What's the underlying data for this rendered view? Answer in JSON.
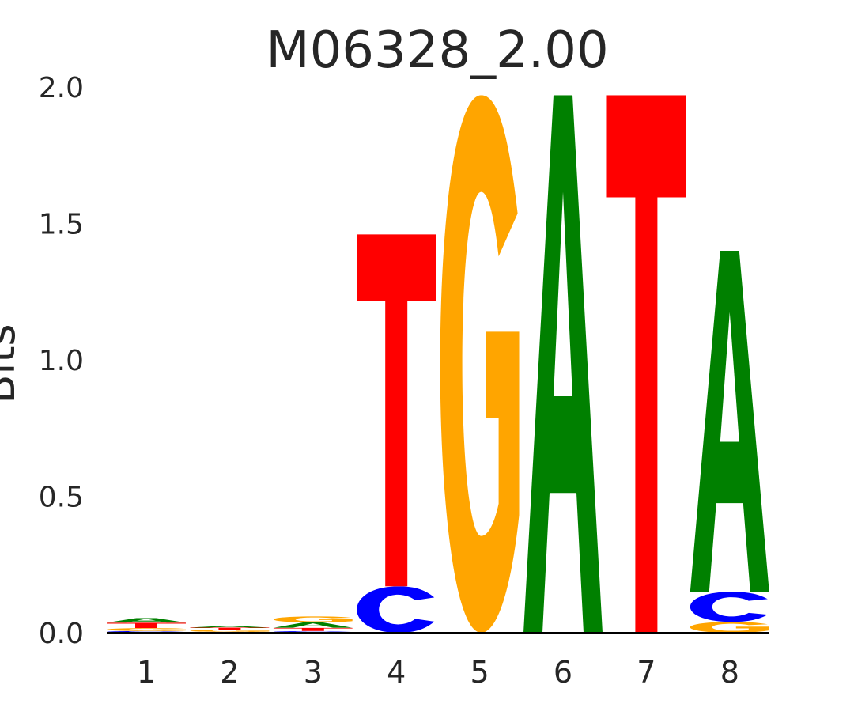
{
  "chart_data": {
    "type": "sequence-logo",
    "title": "M06328_2.00",
    "xlabel": "",
    "ylabel": "Bits",
    "ylim": [
      0,
      2.0
    ],
    "yticks": [
      "0.0",
      "0.5",
      "1.0",
      "1.5",
      "2.0"
    ],
    "ytick_values": [
      0,
      0.5,
      1.0,
      1.5,
      2.0
    ],
    "categories": [
      "1",
      "2",
      "3",
      "4",
      "5",
      "6",
      "7",
      "8"
    ],
    "colors": {
      "A": "#008000",
      "C": "#0000ff",
      "G": "#ffa500",
      "T": "#ff0000"
    },
    "positions": [
      [
        {
          "base": "C",
          "bits": 0.006
        },
        {
          "base": "G",
          "bits": 0.011
        },
        {
          "base": "T",
          "bits": 0.02
        },
        {
          "base": "A",
          "bits": 0.017
        }
      ],
      [
        {
          "base": "C",
          "bits": 0.003
        },
        {
          "base": "G",
          "bits": 0.008
        },
        {
          "base": "T",
          "bits": 0.008
        },
        {
          "base": "A",
          "bits": 0.006
        }
      ],
      [
        {
          "base": "C",
          "bits": 0.006
        },
        {
          "base": "T",
          "bits": 0.012
        },
        {
          "base": "A",
          "bits": 0.02
        },
        {
          "base": "G",
          "bits": 0.022
        }
      ],
      [
        {
          "base": "C",
          "bits": 0.17
        },
        {
          "base": "T",
          "bits": 1.29
        }
      ],
      [
        {
          "base": "G",
          "bits": 1.97
        }
      ],
      [
        {
          "base": "A",
          "bits": 1.97
        }
      ],
      [
        {
          "base": "T",
          "bits": 1.97
        }
      ],
      [
        {
          "base": "G",
          "bits": 0.04
        },
        {
          "base": "C",
          "bits": 0.11
        },
        {
          "base": "A",
          "bits": 1.25
        }
      ]
    ]
  }
}
